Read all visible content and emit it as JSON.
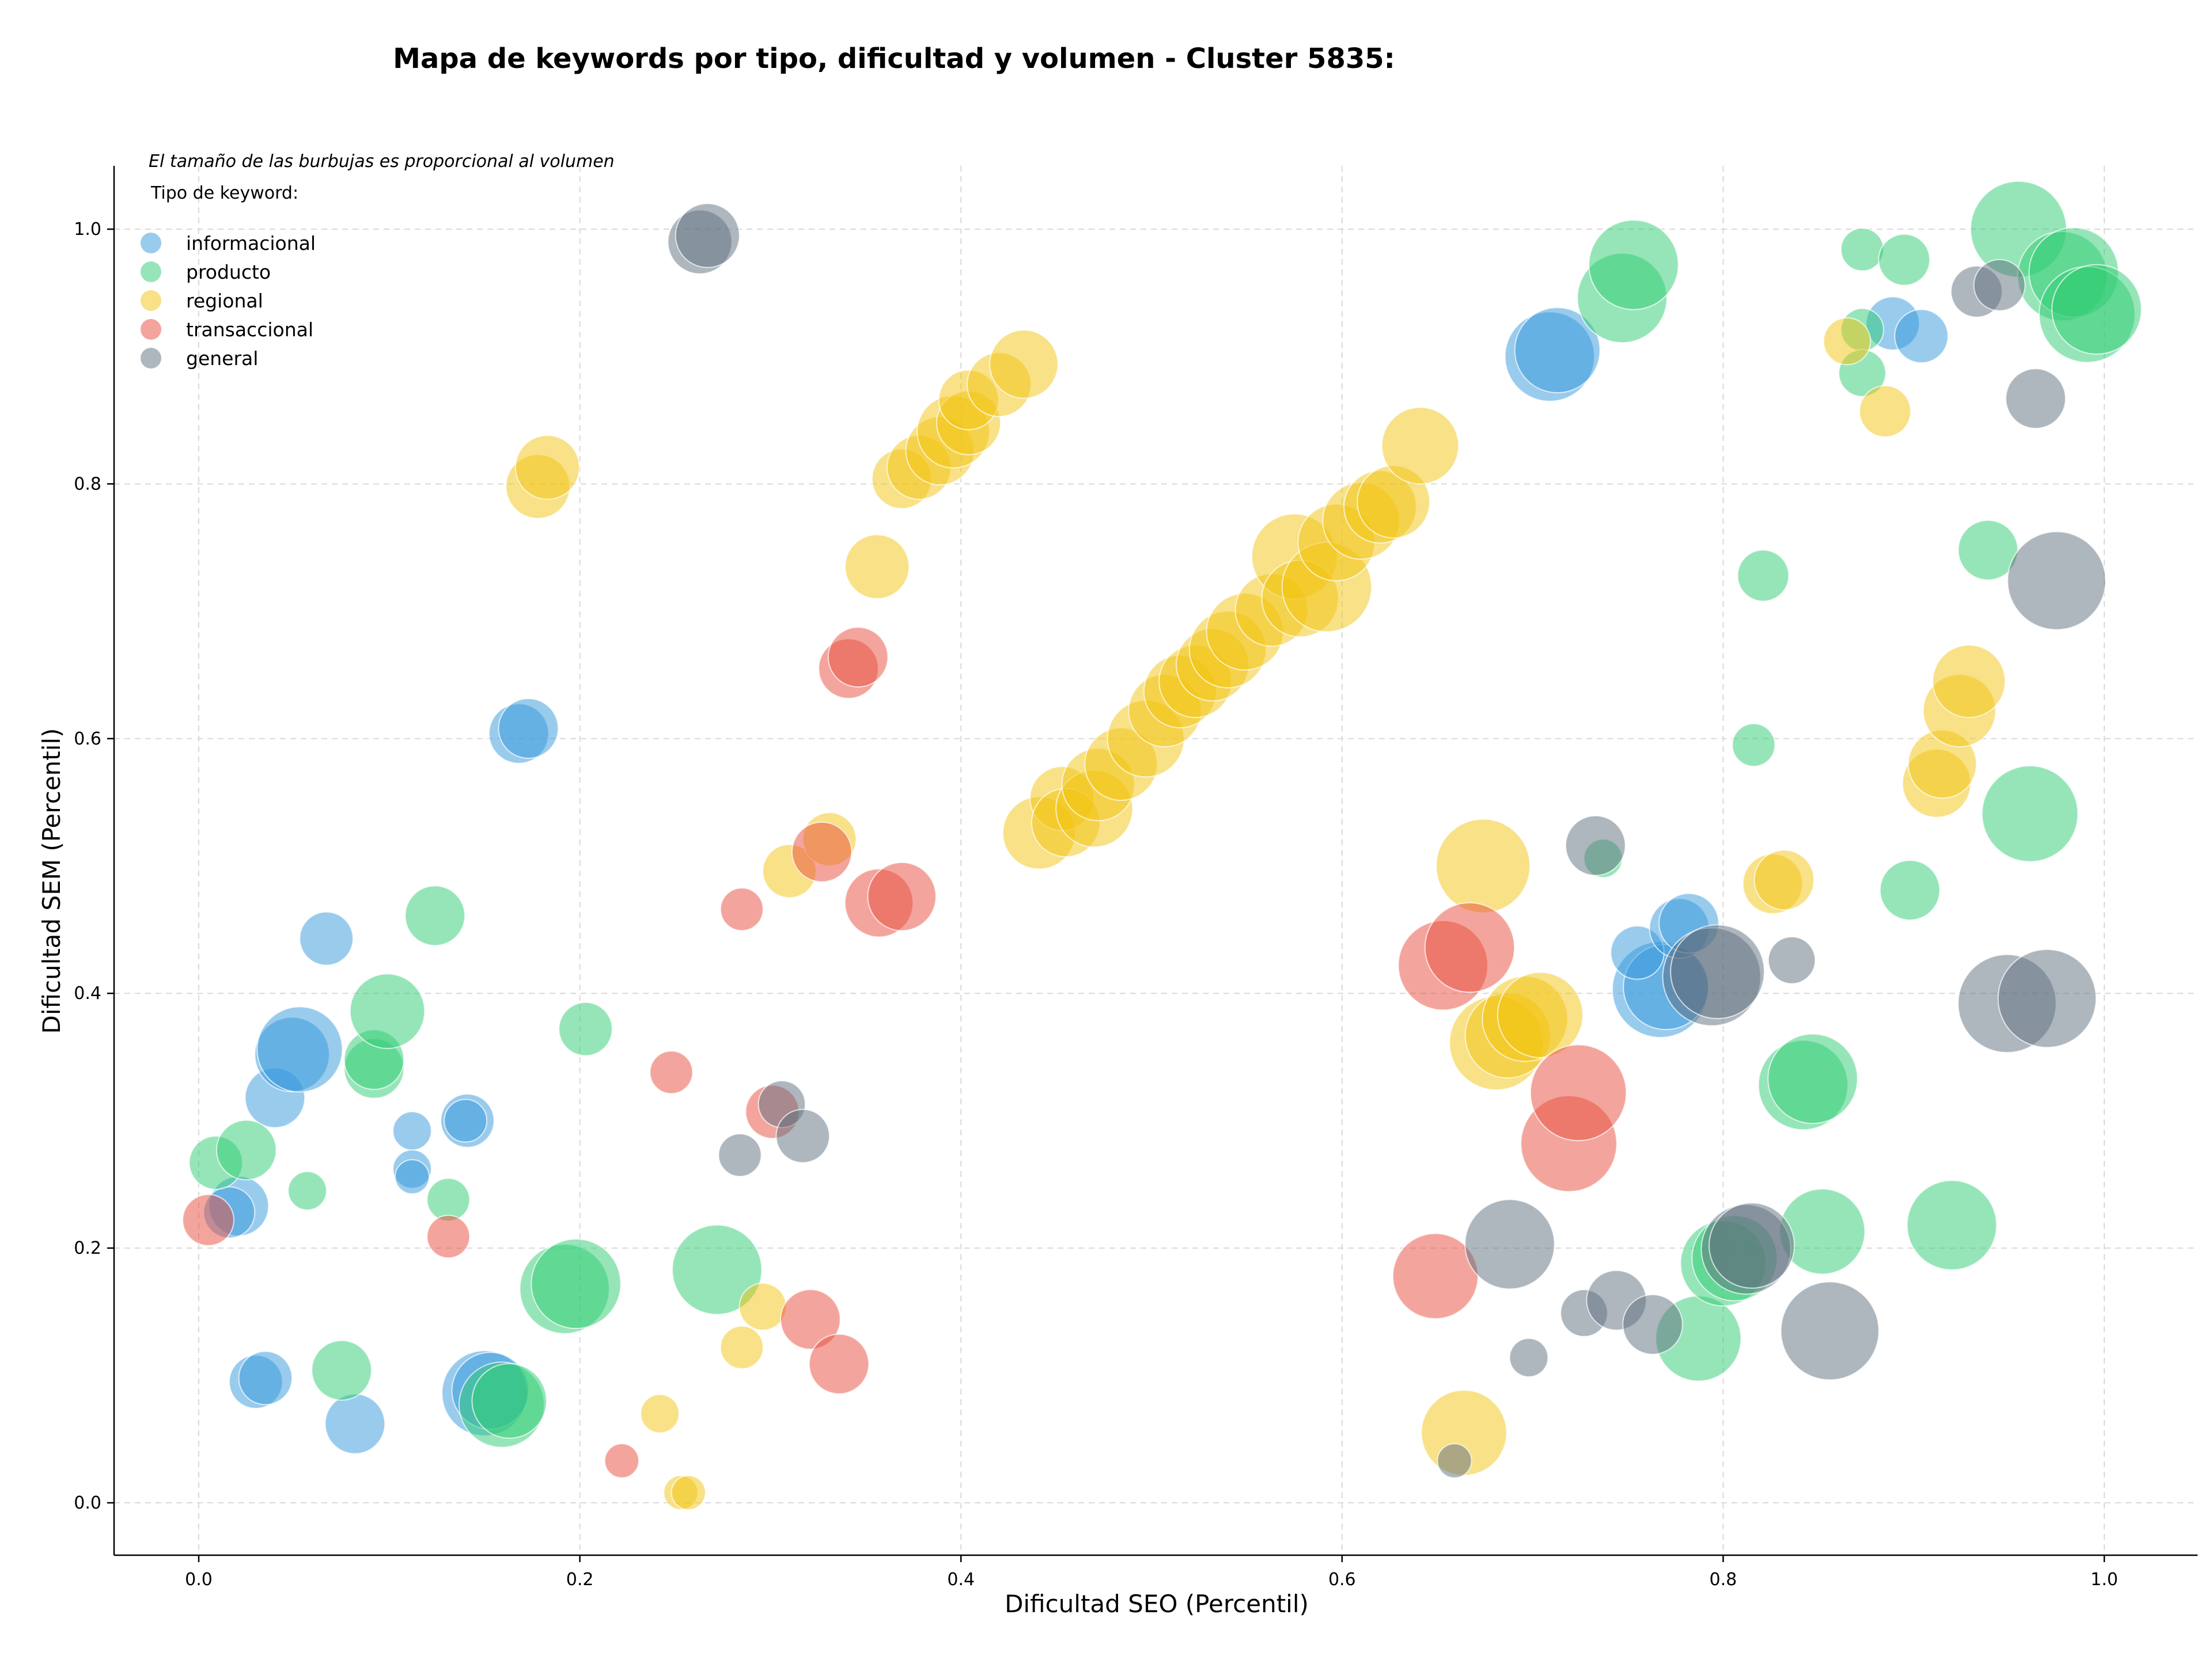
{
  "chart_data": {
    "type": "scatter",
    "title": "Mapa de keywords por tipo, dificultad y volumen - Cluster 5835:",
    "xlabel": "Dificultad SEO (Percentil)",
    "ylabel": "Dificultad SEM (Percentil)",
    "note": "El tamaño de las burbujas es proporcional al volumen",
    "legend_title": "Tipo de keyword:",
    "legend_position": "top-left",
    "xlim": [
      -0.045,
      1.05
    ],
    "ylim": [
      -0.04,
      1.05
    ],
    "grid": true,
    "xticks": [
      "0.0",
      "0.2",
      "0.4",
      "0.6",
      "0.8",
      "1.0"
    ],
    "yticks": [
      "0.0",
      "0.2",
      "0.4",
      "0.6",
      "0.8",
      "1.0"
    ],
    "series": [
      {
        "name": "informacional",
        "color": "#3498db",
        "points": [
          [
            0.112,
            0.292,
            18
          ],
          [
            0.112,
            0.262,
            18
          ],
          [
            0.112,
            0.256,
            16
          ],
          [
            0.067,
            0.443,
            25
          ],
          [
            0.141,
            0.3,
            25
          ],
          [
            0.14,
            0.3,
            20
          ],
          [
            0.04,
            0.318,
            28
          ],
          [
            0.049,
            0.352,
            35
          ],
          [
            0.053,
            0.356,
            40
          ],
          [
            0.021,
            0.233,
            28
          ],
          [
            0.016,
            0.228,
            24
          ],
          [
            0.03,
            0.095,
            25
          ],
          [
            0.035,
            0.098,
            25
          ],
          [
            0.082,
            0.062,
            28
          ],
          [
            0.15,
            0.086,
            40
          ],
          [
            0.153,
            0.088,
            36
          ],
          [
            0.168,
            0.604,
            28
          ],
          [
            0.173,
            0.608,
            28
          ],
          [
            0.709,
            0.9,
            42
          ],
          [
            0.713,
            0.905,
            40
          ],
          [
            0.767,
            0.403,
            45
          ],
          [
            0.77,
            0.405,
            40
          ],
          [
            0.755,
            0.432,
            25
          ],
          [
            0.777,
            0.451,
            28
          ],
          [
            0.782,
            0.455,
            28
          ],
          [
            0.889,
            0.926,
            25
          ],
          [
            0.904,
            0.916,
            25
          ]
        ]
      },
      {
        "name": "producto",
        "color": "#2ecc71",
        "points": [
          [
            0.009,
            0.267,
            25
          ],
          [
            0.025,
            0.277,
            28
          ],
          [
            0.057,
            0.245,
            18
          ],
          [
            0.092,
            0.341,
            28
          ],
          [
            0.092,
            0.348,
            28
          ],
          [
            0.099,
            0.386,
            35
          ],
          [
            0.124,
            0.461,
            28
          ],
          [
            0.131,
            0.238,
            20
          ],
          [
            0.075,
            0.104,
            28
          ],
          [
            0.159,
            0.077,
            40
          ],
          [
            0.163,
            0.08,
            35
          ],
          [
            0.192,
            0.168,
            42
          ],
          [
            0.198,
            0.172,
            42
          ],
          [
            0.203,
            0.372,
            25
          ],
          [
            0.272,
            0.183,
            42
          ],
          [
            0.737,
            0.506,
            18
          ],
          [
            0.747,
            0.946,
            42
          ],
          [
            0.753,
            0.972,
            42
          ],
          [
            0.787,
            0.129,
            40
          ],
          [
            0.8,
            0.188,
            40
          ],
          [
            0.806,
            0.192,
            40
          ],
          [
            0.816,
            0.595,
            20
          ],
          [
            0.821,
            0.728,
            24
          ],
          [
            0.842,
            0.328,
            42
          ],
          [
            0.847,
            0.333,
            42
          ],
          [
            0.852,
            0.213,
            40
          ],
          [
            0.873,
            0.984,
            20
          ],
          [
            0.873,
            0.921,
            20
          ],
          [
            0.873,
            0.887,
            22
          ],
          [
            0.895,
            0.976,
            24
          ],
          [
            0.898,
            0.481,
            28
          ],
          [
            0.92,
            0.218,
            42
          ],
          [
            0.939,
            0.748,
            28
          ],
          [
            0.955,
            1.0,
            45
          ],
          [
            0.961,
            0.541,
            45
          ],
          [
            0.978,
            0.963,
            42
          ],
          [
            0.984,
            0.966,
            42
          ],
          [
            0.991,
            0.933,
            45
          ],
          [
            0.996,
            0.937,
            42
          ]
        ]
      },
      {
        "name": "regional",
        "color": "#f1c40f",
        "points": [
          [
            0.178,
            0.798,
            30
          ],
          [
            0.183,
            0.813,
            30
          ],
          [
            0.242,
            0.07,
            18
          ],
          [
            0.253,
            0.008,
            16
          ],
          [
            0.257,
            0.008,
            16
          ],
          [
            0.285,
            0.122,
            20
          ],
          [
            0.296,
            0.154,
            22
          ],
          [
            0.31,
            0.496,
            25
          ],
          [
            0.331,
            0.521,
            25
          ],
          [
            0.356,
            0.735,
            30
          ],
          [
            0.369,
            0.804,
            28
          ],
          [
            0.378,
            0.813,
            30
          ],
          [
            0.389,
            0.826,
            32
          ],
          [
            0.396,
            0.841,
            34
          ],
          [
            0.404,
            0.848,
            30
          ],
          [
            0.404,
            0.866,
            28
          ],
          [
            0.42,
            0.878,
            30
          ],
          [
            0.433,
            0.894,
            32
          ],
          [
            0.441,
            0.526,
            34
          ],
          [
            0.453,
            0.553,
            30
          ],
          [
            0.455,
            0.534,
            32
          ],
          [
            0.47,
            0.545,
            36
          ],
          [
            0.472,
            0.564,
            34
          ],
          [
            0.484,
            0.58,
            34
          ],
          [
            0.497,
            0.6,
            36
          ],
          [
            0.507,
            0.622,
            34
          ],
          [
            0.515,
            0.637,
            34
          ],
          [
            0.523,
            0.645,
            34
          ],
          [
            0.532,
            0.658,
            34
          ],
          [
            0.54,
            0.67,
            36
          ],
          [
            0.549,
            0.684,
            36
          ],
          [
            0.563,
            0.701,
            34
          ],
          [
            0.575,
            0.743,
            40
          ],
          [
            0.578,
            0.71,
            36
          ],
          [
            0.592,
            0.719,
            42
          ],
          [
            0.597,
            0.754,
            36
          ],
          [
            0.61,
            0.771,
            36
          ],
          [
            0.62,
            0.782,
            34
          ],
          [
            0.627,
            0.786,
            34
          ],
          [
            0.641,
            0.83,
            36
          ],
          [
            0.664,
            0.055,
            40
          ],
          [
            0.674,
            0.5,
            44
          ],
          [
            0.681,
            0.361,
            44
          ],
          [
            0.687,
            0.367,
            40
          ],
          [
            0.696,
            0.38,
            40
          ],
          [
            0.704,
            0.383,
            40
          ],
          [
            0.865,
            0.912,
            22
          ],
          [
            0.885,
            0.857,
            24
          ],
          [
            0.826,
            0.486,
            28
          ],
          [
            0.832,
            0.489,
            28
          ],
          [
            0.912,
            0.565,
            32
          ],
          [
            0.915,
            0.58,
            32
          ],
          [
            0.924,
            0.622,
            34
          ],
          [
            0.929,
            0.645,
            34
          ]
        ]
      },
      {
        "name": "transaccional",
        "color": "#e74c3c",
        "points": [
          [
            0.005,
            0.222,
            24
          ],
          [
            0.131,
            0.209,
            20
          ],
          [
            0.222,
            0.033,
            16
          ],
          [
            0.248,
            0.338,
            20
          ],
          [
            0.285,
            0.466,
            20
          ],
          [
            0.301,
            0.307,
            25
          ],
          [
            0.321,
            0.144,
            28
          ],
          [
            0.327,
            0.511,
            28
          ],
          [
            0.336,
            0.109,
            28
          ],
          [
            0.341,
            0.655,
            28
          ],
          [
            0.346,
            0.664,
            28
          ],
          [
            0.357,
            0.471,
            32
          ],
          [
            0.369,
            0.476,
            32
          ],
          [
            0.649,
            0.178,
            40
          ],
          [
            0.653,
            0.422,
            42
          ],
          [
            0.667,
            0.436,
            42
          ],
          [
            0.719,
            0.282,
            45
          ],
          [
            0.724,
            0.322,
            45
          ]
        ]
      },
      {
        "name": "general",
        "color": "#5d6d7e",
        "points": [
          [
            0.263,
            0.99,
            30
          ],
          [
            0.267,
            0.995,
            30
          ],
          [
            0.284,
            0.273,
            20
          ],
          [
            0.306,
            0.313,
            22
          ],
          [
            0.317,
            0.288,
            25
          ],
          [
            0.659,
            0.033,
            16
          ],
          [
            0.688,
            0.203,
            42
          ],
          [
            0.698,
            0.114,
            18
          ],
          [
            0.727,
            0.149,
            22
          ],
          [
            0.733,
            0.516,
            28
          ],
          [
            0.744,
            0.159,
            28
          ],
          [
            0.763,
            0.14,
            28
          ],
          [
            0.794,
            0.413,
            46
          ],
          [
            0.797,
            0.417,
            44
          ],
          [
            0.812,
            0.199,
            42
          ],
          [
            0.815,
            0.202,
            40
          ],
          [
            0.836,
            0.426,
            22
          ],
          [
            0.856,
            0.135,
            46
          ],
          [
            0.933,
            0.951,
            24
          ],
          [
            0.945,
            0.956,
            24
          ],
          [
            0.949,
            0.392,
            46
          ],
          [
            0.964,
            0.867,
            28
          ],
          [
            0.97,
            0.396,
            46
          ],
          [
            0.975,
            0.724,
            46
          ]
        ]
      }
    ]
  }
}
